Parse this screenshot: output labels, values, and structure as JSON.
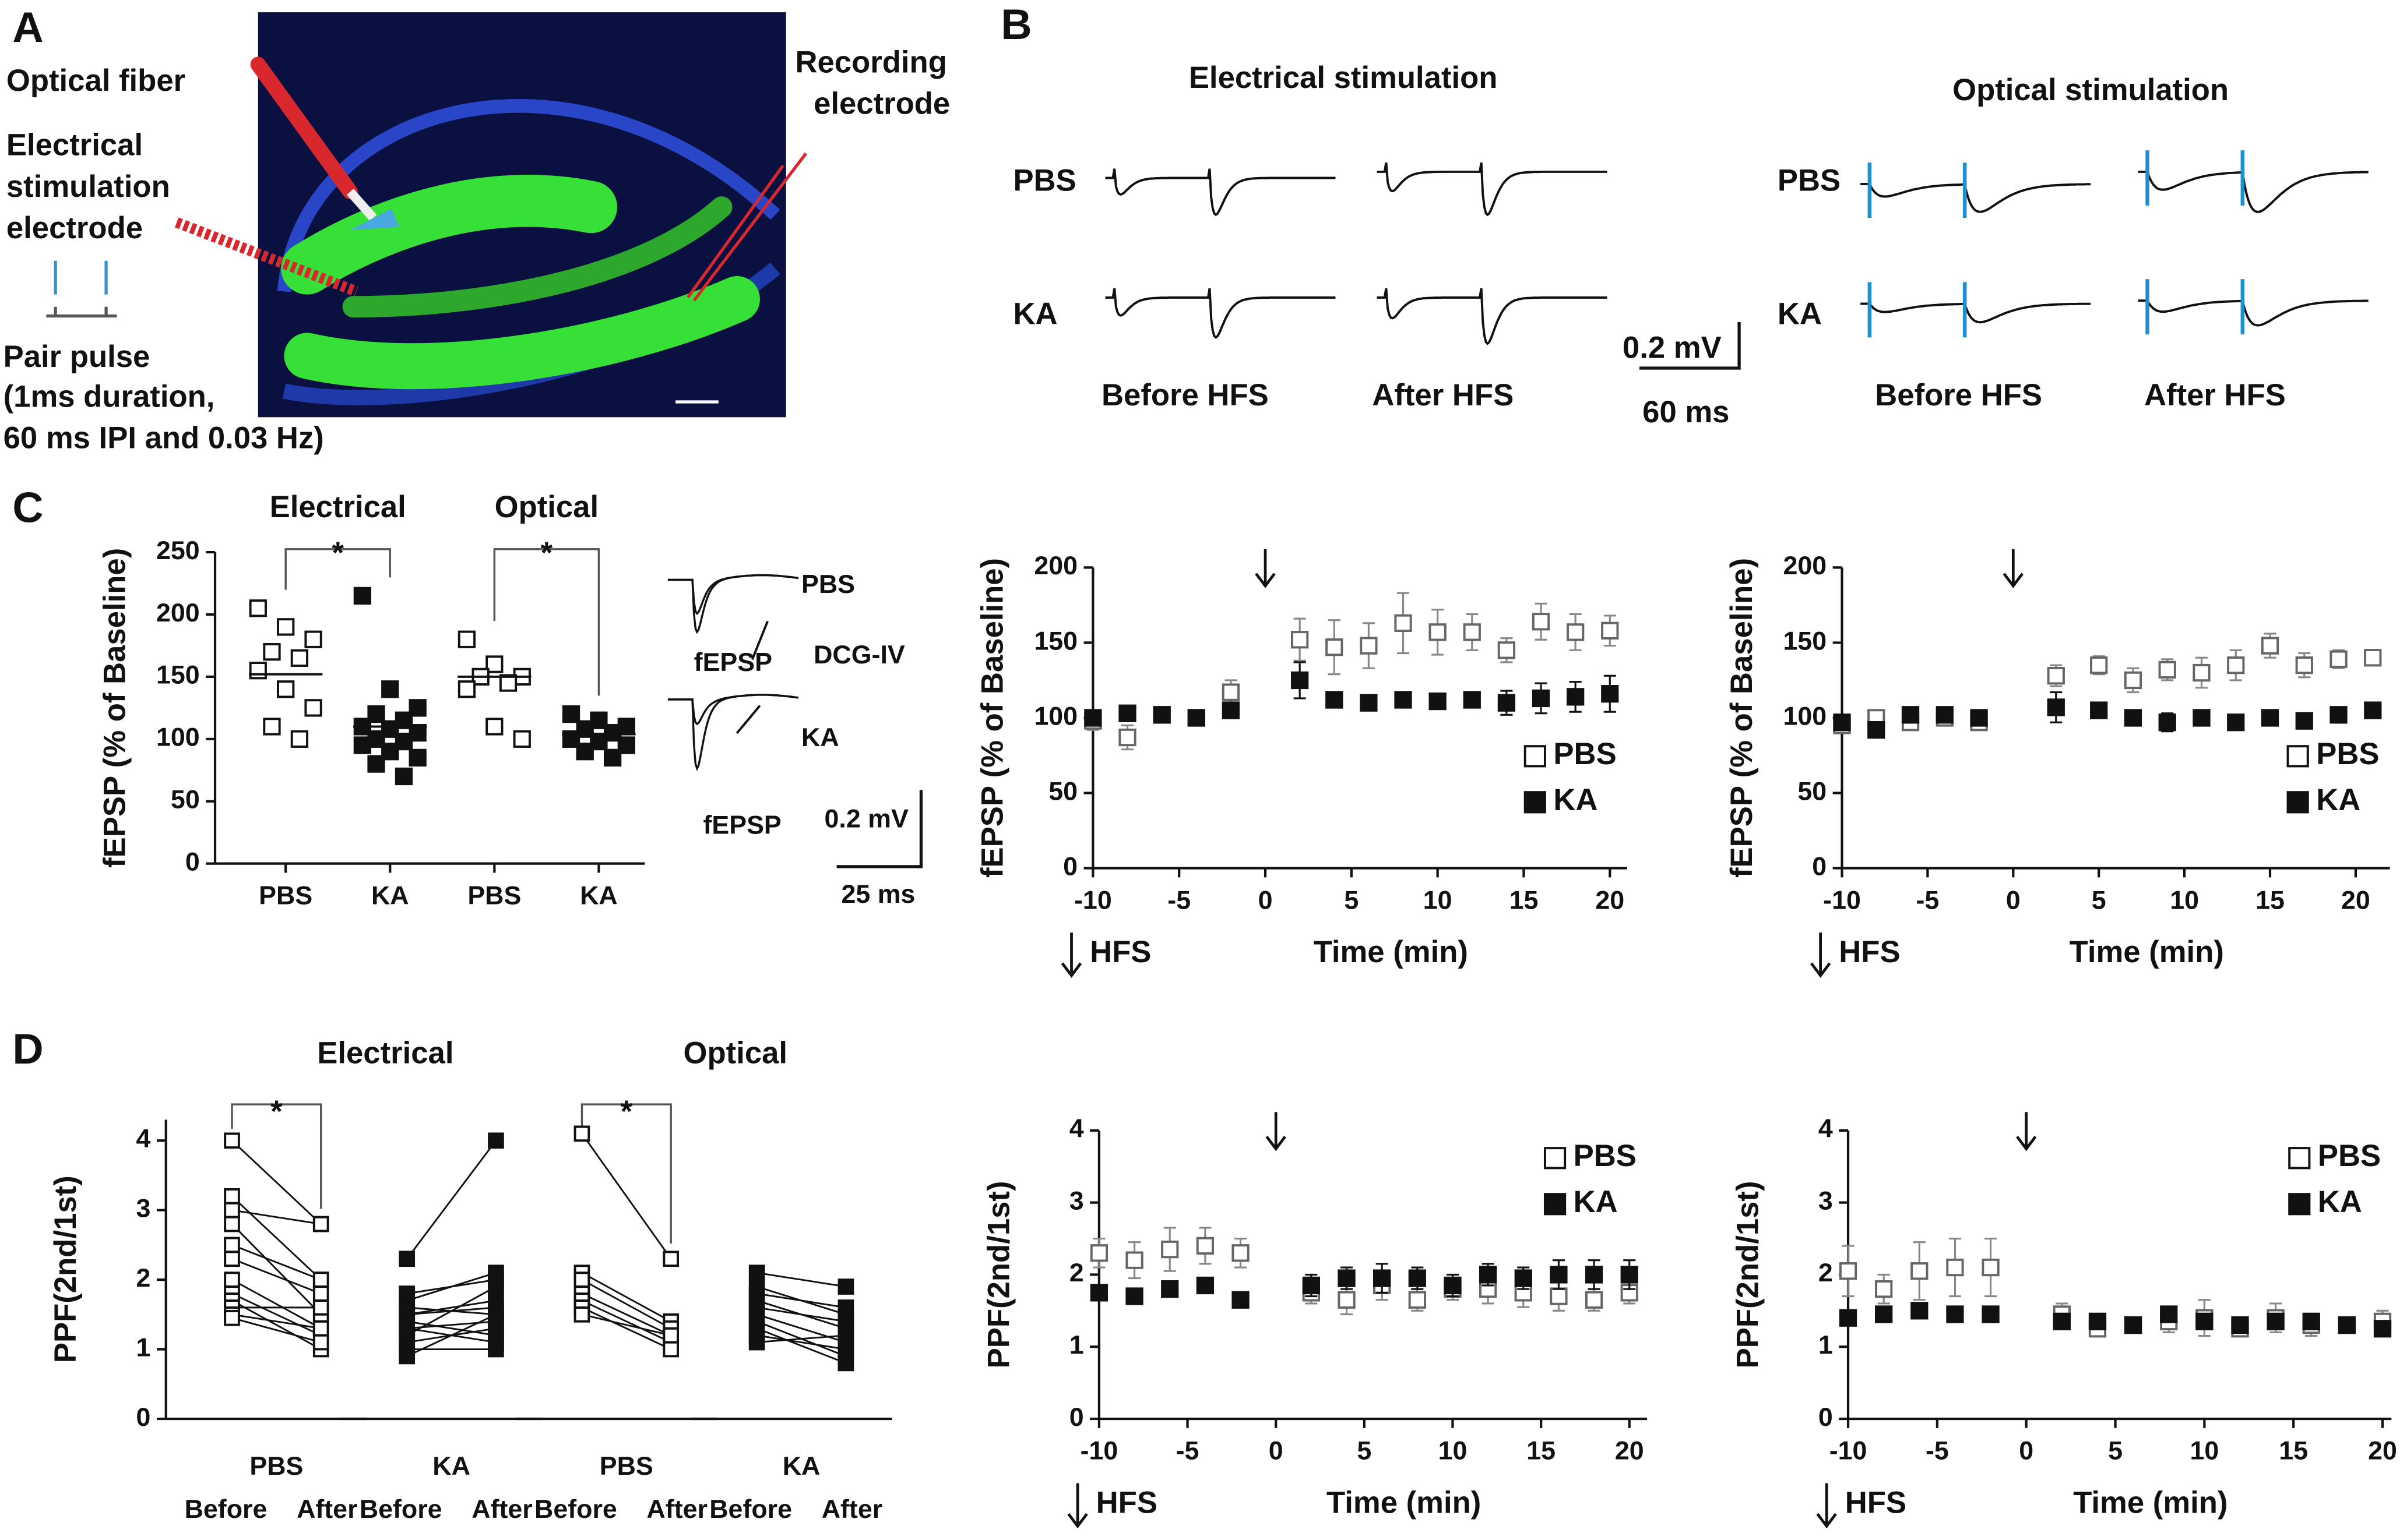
{
  "panels": {
    "A": {
      "label": "A",
      "texts": [
        "Optical fiber",
        "Electrical",
        "stimulation",
        "electrode",
        "Recording",
        "electrode",
        "Pair pulse",
        "(1ms duration,",
        "60 ms IPI and 0.03 Hz)"
      ]
    },
    "B": {
      "label": "B",
      "electrical_title": "Electrical stimulation",
      "optical_title": "Optical stimulation",
      "row_labels": [
        "PBS",
        "KA"
      ],
      "col_labels": [
        "Before HFS",
        "After HFS"
      ],
      "scale_v": "0.2 mV",
      "scale_t": "60 ms"
    },
    "C": {
      "label": "C",
      "inset": {
        "labels": [
          "PBS",
          "DCG-IV",
          "KA",
          "fEPSP"
        ],
        "scale_v": "0.2 mV",
        "scale_t": "25 ms"
      }
    },
    "D": {
      "label": "D"
    }
  },
  "chart_data": [
    {
      "type": "dot",
      "ylabel": "fEPSP (% of Baseline)",
      "ylim": [
        0,
        250
      ],
      "yticks": [
        0,
        50,
        100,
        150,
        200,
        250
      ],
      "groups": [
        {
          "title": "Electrical",
          "significance": "*",
          "series": [
            {
              "name": "PBS",
              "marker": "open",
              "mean": 152,
              "values": [
                205,
                190,
                180,
                170,
                165,
                155,
                140,
                125,
                110,
                100
              ]
            },
            {
              "name": "KA",
              "marker": "filled",
              "mean": 110,
              "values": [
                215,
                140,
                125,
                120,
                115,
                110,
                108,
                105,
                100,
                98,
                95,
                90,
                85,
                80,
                70
              ]
            }
          ]
        },
        {
          "title": "Optical",
          "significance": "*",
          "series": [
            {
              "name": "PBS",
              "marker": "open",
              "mean": 150,
              "values": [
                180,
                160,
                150,
                150,
                145,
                140,
                110,
                100
              ]
            },
            {
              "name": "KA",
              "marker": "filled",
              "mean": 104,
              "values": [
                120,
                115,
                110,
                108,
                105,
                100,
                98,
                95,
                90,
                85
              ]
            }
          ]
        }
      ]
    },
    {
      "type": "scatter",
      "xlabel": "Time (min)",
      "ylabel": "fEPSP (% of Baseline)",
      "annotation": "HFS",
      "hfs_time": 0,
      "legend": "lower right",
      "xlim": [
        -10,
        21
      ],
      "xticks": [
        -10,
        -5,
        0,
        5,
        10,
        15,
        20
      ],
      "ylim": [
        0,
        200
      ],
      "yticks": [
        0,
        50,
        100,
        150,
        200
      ],
      "x": [
        -10,
        -8,
        -6,
        -4,
        -2,
        2,
        4,
        6,
        8,
        10,
        12,
        14,
        16,
        18,
        20
      ],
      "series": [
        {
          "name": "PBS",
          "marker": "open",
          "values": [
            98,
            87,
            102,
            100,
            117,
            152,
            147,
            148,
            163,
            157,
            157,
            145,
            164,
            157,
            158
          ],
          "errors": [
            6,
            8,
            4,
            5,
            8,
            14,
            18,
            15,
            20,
            15,
            12,
            8,
            12,
            12,
            10
          ]
        },
        {
          "name": "KA",
          "marker": "filled",
          "values": [
            100,
            103,
            102,
            100,
            105,
            125,
            112,
            110,
            112,
            111,
            112,
            110,
            113,
            114,
            116
          ],
          "errors": [
            3,
            3,
            3,
            3,
            4,
            12,
            4,
            4,
            4,
            5,
            4,
            8,
            10,
            10,
            12
          ]
        }
      ]
    },
    {
      "type": "scatter",
      "xlabel": "Time (min)",
      "ylabel": "fEPSP (% of Baseline)",
      "annotation": "HFS",
      "hfs_time": 0,
      "legend": "lower right",
      "xlim": [
        -10,
        22
      ],
      "xticks": [
        -10,
        -5,
        0,
        5,
        10,
        15,
        20
      ],
      "ylim": [
        0,
        200
      ],
      "yticks": [
        0,
        50,
        100,
        150,
        200
      ],
      "x": [
        -10,
        -8,
        -6,
        -4,
        -2,
        2.5,
        5,
        7,
        9,
        11,
        13,
        15,
        17,
        19,
        21
      ],
      "series": [
        {
          "name": "PBS",
          "marker": "open",
          "values": [
            95,
            100,
            97,
            100,
            97,
            128,
            135,
            125,
            132,
            130,
            135,
            148,
            135,
            139,
            140
          ],
          "errors": [
            5,
            4,
            4,
            4,
            4,
            7,
            6,
            8,
            7,
            10,
            10,
            8,
            8,
            6,
            5
          ]
        },
        {
          "name": "KA",
          "marker": "filled",
          "values": [
            97,
            92,
            102,
            102,
            100,
            107,
            105,
            100,
            97,
            100,
            97,
            100,
            98,
            102,
            105
          ],
          "errors": [
            3,
            3,
            3,
            3,
            3,
            10,
            5,
            4,
            6,
            5,
            4,
            4,
            4,
            4,
            4
          ]
        }
      ]
    },
    {
      "type": "paired",
      "ylabel": "PPF(2nd/1st)",
      "ylim": [
        0,
        4.3
      ],
      "yticks": [
        0,
        1,
        2,
        3,
        4
      ],
      "conditions": [
        "Before",
        "After"
      ],
      "groups": [
        {
          "title": "Electrical",
          "significance": "*",
          "series": [
            {
              "name": "PBS",
              "marker": "open",
              "before": [
                4.0,
                3.2,
                3.0,
                2.8,
                2.5,
                2.3,
                2.0,
                1.8,
                1.7,
                1.6,
                1.5,
                1.45
              ],
              "after": [
                2.8,
                2.0,
                2.8,
                1.5,
                2.0,
                1.8,
                1.3,
                1.2,
                1.0,
                1.6,
                1.3,
                1.1
              ]
            },
            {
              "name": "KA",
              "marker": "filled",
              "before": [
                2.3,
                1.8,
                1.6,
                1.5,
                1.4,
                1.3,
                1.2,
                1.1,
                1.0,
                0.9,
                1.5,
                1.3,
                1.7
              ],
              "after": [
                4.0,
                2.0,
                1.5,
                1.7,
                1.2,
                1.4,
                1.9,
                1.3,
                1.0,
                1.5,
                1.6,
                1.1,
                2.1
              ]
            }
          ]
        },
        {
          "title": "Optical",
          "significance": "*",
          "series": [
            {
              "name": "PBS",
              "marker": "open",
              "before": [
                4.1,
                2.1,
                2.0,
                1.8,
                1.7,
                1.6,
                1.5
              ],
              "after": [
                2.3,
                1.4,
                1.3,
                1.2,
                1.1,
                1.0,
                1.2
              ]
            },
            {
              "name": "KA",
              "marker": "filled",
              "before": [
                2.1,
                1.9,
                1.7,
                1.5,
                1.4,
                1.3,
                1.2,
                1.1,
                1.6,
                1.8
              ],
              "after": [
                1.9,
                1.5,
                1.3,
                1.1,
                0.9,
                0.8,
                1.0,
                1.2,
                1.4,
                1.6
              ]
            }
          ]
        }
      ]
    },
    {
      "type": "scatter",
      "xlabel": "Time (min)",
      "ylabel": "PPF(2nd/1st)",
      "annotation": "HFS",
      "hfs_time": 0,
      "legend": "upper right",
      "xlim": [
        -10,
        21
      ],
      "xticks": [
        -10,
        -5,
        0,
        5,
        10,
        15,
        20
      ],
      "ylim": [
        0,
        4
      ],
      "yticks": [
        0,
        1,
        2,
        3,
        4
      ],
      "x": [
        -10,
        -8,
        -6,
        -4,
        -2,
        2,
        4,
        6,
        8,
        10,
        12,
        14,
        16,
        18,
        20
      ],
      "series": [
        {
          "name": "PBS",
          "marker": "open",
          "values": [
            2.3,
            2.2,
            2.35,
            2.4,
            2.3,
            1.75,
            1.65,
            1.85,
            1.65,
            1.8,
            1.8,
            1.75,
            1.7,
            1.65,
            1.75
          ],
          "errors": [
            0.2,
            0.25,
            0.3,
            0.25,
            0.2,
            0.15,
            0.2,
            0.2,
            0.15,
            0.15,
            0.2,
            0.2,
            0.2,
            0.15,
            0.15
          ]
        },
        {
          "name": "KA",
          "marker": "filled",
          "values": [
            1.75,
            1.7,
            1.8,
            1.85,
            1.65,
            1.85,
            1.95,
            1.95,
            1.95,
            1.85,
            2.0,
            1.95,
            2.0,
            2.0,
            2.0
          ],
          "errors": [
            0.05,
            0.05,
            0.05,
            0.05,
            0.05,
            0.15,
            0.15,
            0.2,
            0.15,
            0.15,
            0.15,
            0.15,
            0.2,
            0.2,
            0.2
          ]
        }
      ]
    },
    {
      "type": "scatter",
      "xlabel": "Time (min)",
      "ylabel": "PPF(2nd/1st)",
      "annotation": "HFS",
      "hfs_time": 0,
      "legend": "upper right",
      "xlim": [
        -10,
        20.5
      ],
      "xticks": [
        -10,
        -5,
        0,
        5,
        10,
        15,
        20
      ],
      "ylim": [
        0,
        4
      ],
      "yticks": [
        0,
        1,
        2,
        3,
        4
      ],
      "x": [
        -10,
        -8,
        -6,
        -4,
        -2,
        2,
        4,
        6,
        8,
        10,
        12,
        14,
        16,
        18,
        20
      ],
      "series": [
        {
          "name": "PBS",
          "marker": "open",
          "values": [
            2.05,
            1.8,
            2.05,
            2.1,
            2.1,
            1.45,
            1.25,
            1.3,
            1.35,
            1.4,
            1.25,
            1.4,
            1.3,
            1.3,
            1.35
          ],
          "errors": [
            0.35,
            0.2,
            0.4,
            0.4,
            0.4,
            0.15,
            0.1,
            0.1,
            0.15,
            0.25,
            0.1,
            0.2,
            0.15,
            0.1,
            0.15
          ]
        },
        {
          "name": "KA",
          "marker": "filled",
          "values": [
            1.4,
            1.45,
            1.5,
            1.45,
            1.45,
            1.35,
            1.35,
            1.3,
            1.45,
            1.35,
            1.3,
            1.35,
            1.35,
            1.3,
            1.25
          ],
          "errors": [
            0.05,
            0.05,
            0.05,
            0.05,
            0.05,
            0.1,
            0.05,
            0.05,
            0.1,
            0.1,
            0.05,
            0.05,
            0.05,
            0.05,
            0.05
          ]
        }
      ]
    }
  ]
}
